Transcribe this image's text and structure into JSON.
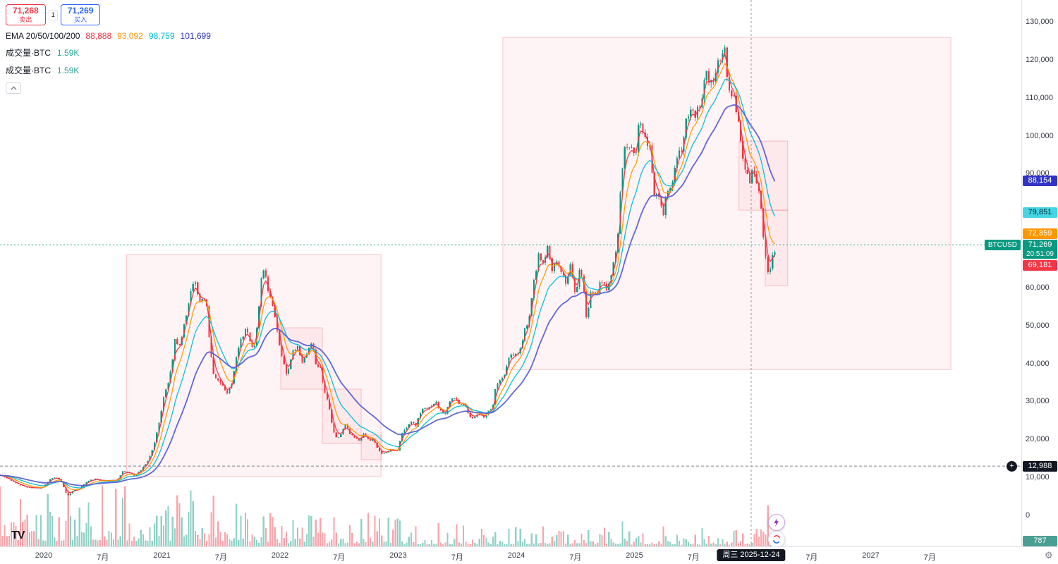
{
  "order_panel": {
    "sell_price": "71,268",
    "sell_label": "卖出",
    "spread": "1",
    "buy_price": "71,269",
    "buy_label": "买入"
  },
  "legend": {
    "ema_label": "EMA 20/50/100/200",
    "ema_values": [
      {
        "text": "88,888",
        "color": "#f23645"
      },
      {
        "text": "93,092",
        "color": "#ff9800"
      },
      {
        "text": "98,759",
        "color": "#00bcd4"
      },
      {
        "text": "101,699",
        "color": "#3134c5"
      }
    ],
    "volume_row1_label": "成交量·BTC",
    "volume_row1_value": "1.59K",
    "volume_row2_label": "成交量·BTC",
    "volume_row2_value": "1.59K",
    "volume_value_color": "#26a69a"
  },
  "chart_data": {
    "type": "candlestick",
    "symbol": "BTCUSD",
    "up_color": "#089981",
    "down_color": "#f23645",
    "y_axis": {
      "ticks": [
        130000,
        120000,
        110000,
        100000,
        90000,
        60000,
        50000,
        40000,
        30000,
        20000,
        10000,
        0
      ]
    },
    "x_axis": {
      "ticks": [
        {
          "t": 2020.0,
          "label": "2020"
        },
        {
          "t": 2020.5,
          "label": "7月"
        },
        {
          "t": 2021.0,
          "label": "2021"
        },
        {
          "t": 2021.5,
          "label": "7月"
        },
        {
          "t": 2022.0,
          "label": "2022"
        },
        {
          "t": 2022.5,
          "label": "7月"
        },
        {
          "t": 2023.0,
          "label": "2023"
        },
        {
          "t": 2023.5,
          "label": "7月"
        },
        {
          "t": 2024.0,
          "label": "2024"
        },
        {
          "t": 2024.5,
          "label": "7月"
        },
        {
          "t": 2025.0,
          "label": "2025"
        },
        {
          "t": 2025.5,
          "label": "7月"
        },
        {
          "t": 2026.5,
          "label": "7月"
        },
        {
          "t": 2027.0,
          "label": "2027"
        },
        {
          "t": 2027.5,
          "label": "7月"
        }
      ]
    },
    "price_path": [
      [
        2019.63,
        10800
      ],
      [
        2019.7,
        9800
      ],
      [
        2019.78,
        8300
      ],
      [
        2019.85,
        7500
      ],
      [
        2019.92,
        7200
      ],
      [
        2020,
        7200
      ],
      [
        2020.06,
        9400
      ],
      [
        2020.11,
        10200
      ],
      [
        2020.16,
        8900
      ],
      [
        2020.2,
        5600
      ],
      [
        2020.22,
        5200
      ],
      [
        2020.26,
        6700
      ],
      [
        2020.31,
        6900
      ],
      [
        2020.37,
        8800
      ],
      [
        2020.44,
        9600
      ],
      [
        2020.5,
        9200
      ],
      [
        2020.57,
        9150
      ],
      [
        2020.63,
        9300
      ],
      [
        2020.68,
        11600
      ],
      [
        2020.73,
        11300
      ],
      [
        2020.78,
        10400
      ],
      [
        2020.83,
        11800
      ],
      [
        2020.88,
        13900
      ],
      [
        2020.93,
        17200
      ],
      [
        2020.97,
        22000
      ],
      [
        2021,
        27000
      ],
      [
        2021.03,
        32000
      ],
      [
        2021.06,
        34500
      ],
      [
        2021.09,
        38500
      ],
      [
        2021.12,
        46500
      ],
      [
        2021.15,
        44000
      ],
      [
        2021.19,
        49000
      ],
      [
        2021.22,
        53000
      ],
      [
        2021.25,
        58000
      ],
      [
        2021.285,
        62800
      ],
      [
        2021.31,
        59000
      ],
      [
        2021.34,
        55800
      ],
      [
        2021.38,
        58000
      ],
      [
        2021.42,
        43000
      ],
      [
        2021.45,
        37000
      ],
      [
        2021.49,
        35800
      ],
      [
        2021.53,
        33800
      ],
      [
        2021.56,
        31800
      ],
      [
        2021.6,
        34500
      ],
      [
        2021.63,
        40000
      ],
      [
        2021.67,
        45800
      ],
      [
        2021.7,
        47800
      ],
      [
        2021.73,
        49000
      ],
      [
        2021.76,
        45000
      ],
      [
        2021.79,
        43800
      ],
      [
        2021.82,
        50500
      ],
      [
        2021.85,
        61800
      ],
      [
        2021.875,
        64800
      ],
      [
        2021.9,
        60800
      ],
      [
        2021.93,
        57200
      ],
      [
        2021.96,
        53800
      ],
      [
        2021.99,
        47200
      ],
      [
        2022.02,
        42800
      ],
      [
        2022.06,
        37200
      ],
      [
        2022.09,
        39200
      ],
      [
        2022.12,
        44000
      ],
      [
        2022.16,
        44200
      ],
      [
        2022.2,
        39800
      ],
      [
        2022.24,
        42800
      ],
      [
        2022.28,
        45600
      ],
      [
        2022.31,
        40200
      ],
      [
        2022.35,
        38800
      ],
      [
        2022.38,
        33200
      ],
      [
        2022.42,
        29800
      ],
      [
        2022.455,
        22800
      ],
      [
        2022.49,
        20400
      ],
      [
        2022.52,
        21200
      ],
      [
        2022.56,
        24000
      ],
      [
        2022.6,
        21600
      ],
      [
        2022.64,
        20200
      ],
      [
        2022.68,
        19900
      ],
      [
        2022.72,
        21600
      ],
      [
        2022.76,
        19600
      ],
      [
        2022.8,
        20300
      ],
      [
        2022.84,
        17100
      ],
      [
        2022.87,
        16300
      ],
      [
        2022.91,
        16600
      ],
      [
        2022.95,
        17300
      ],
      [
        2023,
        16700
      ],
      [
        2023.04,
        21200
      ],
      [
        2023.08,
        23300
      ],
      [
        2023.12,
        24600
      ],
      [
        2023.16,
        23600
      ],
      [
        2023.21,
        28300
      ],
      [
        2023.25,
        27900
      ],
      [
        2023.29,
        28600
      ],
      [
        2023.33,
        30000
      ],
      [
        2023.37,
        27300
      ],
      [
        2023.41,
        26900
      ],
      [
        2023.45,
        30300
      ],
      [
        2023.49,
        30600
      ],
      [
        2023.53,
        29400
      ],
      [
        2023.57,
        29300
      ],
      [
        2023.61,
        26100
      ],
      [
        2023.65,
        25900
      ],
      [
        2023.69,
        26600
      ],
      [
        2023.73,
        25900
      ],
      [
        2023.77,
        27300
      ],
      [
        2023.81,
        28400
      ],
      [
        2023.84,
        34600
      ],
      [
        2023.88,
        35600
      ],
      [
        2023.92,
        37900
      ],
      [
        2023.96,
        42900
      ],
      [
        2024,
        42400
      ],
      [
        2024.04,
        43100
      ],
      [
        2024.08,
        48600
      ],
      [
        2024.12,
        52100
      ],
      [
        2024.16,
        61600
      ],
      [
        2024.2,
        69100
      ],
      [
        2024.23,
        65600
      ],
      [
        2024.27,
        70900
      ],
      [
        2024.31,
        64600
      ],
      [
        2024.35,
        66600
      ],
      [
        2024.39,
        63900
      ],
      [
        2024.43,
        61600
      ],
      [
        2024.47,
        66600
      ],
      [
        2024.51,
        58100
      ],
      [
        2024.55,
        64900
      ],
      [
        2024.59,
        58100
      ],
      [
        2024.605,
        50800
      ],
      [
        2024.63,
        57600
      ],
      [
        2024.65,
        59600
      ],
      [
        2024.69,
        58300
      ],
      [
        2024.73,
        62600
      ],
      [
        2024.77,
        59000
      ],
      [
        2024.81,
        63100
      ],
      [
        2024.85,
        68900
      ],
      [
        2024.875,
        76100
      ],
      [
        2024.9,
        90600
      ],
      [
        2024.93,
        97100
      ],
      [
        2024.96,
        95600
      ],
      [
        2024.99,
        97600
      ],
      [
        2025.02,
        94600
      ],
      [
        2025.055,
        105600
      ],
      [
        2025.08,
        102100
      ],
      [
        2025.11,
        97600
      ],
      [
        2025.14,
        96900
      ],
      [
        2025.17,
        84600
      ],
      [
        2025.2,
        83600
      ],
      [
        2025.23,
        82600
      ],
      [
        2025.25,
        77800
      ],
      [
        2025.28,
        84100
      ],
      [
        2025.33,
        88100
      ],
      [
        2025.37,
        94600
      ],
      [
        2025.41,
        97100
      ],
      [
        2025.45,
        104100
      ],
      [
        2025.49,
        107600
      ],
      [
        2025.53,
        105600
      ],
      [
        2025.57,
        108600
      ],
      [
        2025.61,
        117600
      ],
      [
        2025.65,
        113600
      ],
      [
        2025.69,
        116600
      ],
      [
        2025.73,
        119600
      ],
      [
        2025.77,
        124100
      ],
      [
        2025.8,
        114600
      ],
      [
        2025.83,
        111100
      ],
      [
        2025.86,
        108600
      ],
      [
        2025.89,
        103100
      ],
      [
        2025.92,
        95600
      ],
      [
        2025.95,
        91100
      ],
      [
        2025.98,
        87600
      ],
      [
        2026.01,
        91600
      ],
      [
        2026.04,
        87100
      ],
      [
        2026.07,
        83600
      ],
      [
        2026.1,
        74100
      ],
      [
        2026.135,
        63600
      ],
      [
        2026.17,
        66600
      ],
      [
        2026.2,
        70600
      ]
    ],
    "emas": {
      "periods_days": [
        20,
        50,
        100,
        200
      ],
      "periods_weeks": [
        3,
        7,
        14,
        29
      ],
      "colors": [
        "#f23645",
        "#ff9800",
        "#00bcd4",
        "#5a5fd6"
      ],
      "current_values": [
        69181,
        72859,
        79851,
        88154
      ],
      "crosshair_values": [
        88888,
        93092,
        98759,
        101699
      ]
    },
    "badges": [
      {
        "price": 88154,
        "label": "88,154",
        "bg": "#3134c5",
        "fg": "#ffffff",
        "nudge": 0
      },
      {
        "price": 79851,
        "label": "79,851",
        "bg": "#45d5e4",
        "fg": "#0b2a30",
        "nudge": 0
      },
      {
        "price": 72859,
        "label": "72,859",
        "bg": "#ff9800",
        "fg": "#ffffff",
        "nudge": -7
      },
      {
        "price": 69181,
        "label": "69,181",
        "bg": "#f23645",
        "fg": "#ffffff",
        "nudge": 18
      }
    ],
    "current": {
      "symbol_tag": "BTCUSD",
      "price": 71269,
      "price_label": "71,269",
      "countdown": "20:51:09",
      "bg": "#089981"
    },
    "alert_line": {
      "price": 12988,
      "label": "12,988"
    },
    "volume_last": {
      "label": "787",
      "bg": "#4a9e94"
    },
    "crosshair": {
      "t": 2025.988,
      "date_label": "周三 2025-12-24"
    },
    "boxes": [
      {
        "t1": 2020.7,
        "p1": 10200,
        "t2": 2022.854,
        "p2": 68700
      },
      {
        "t1": 2023.886,
        "p1": 38400,
        "t2": 2027.678,
        "p2": 125900
      },
      {
        "t1": 2022.006,
        "p1": 33240,
        "t2": 2022.358,
        "p2": 49400
      },
      {
        "t1": 2022.358,
        "p1": 18940,
        "t2": 2022.687,
        "p2": 33240
      },
      {
        "t1": 2022.687,
        "p1": 14670,
        "t2": 2022.86,
        "p2": 21170
      },
      {
        "t1": 2025.885,
        "p1": 80400,
        "t2": 2026.297,
        "p2": 98600
      },
      {
        "t1": 2026.107,
        "p1": 60500,
        "t2": 2026.297,
        "p2": 80400
      }
    ],
    "volume_spikes": [
      [
        2019.81,
        50
      ],
      [
        2020.205,
        72
      ],
      [
        2021.04,
        58
      ],
      [
        2021.13,
        36
      ],
      [
        2021.42,
        34
      ],
      [
        2021.875,
        25
      ],
      [
        2022.455,
        38
      ],
      [
        2022.85,
        26
      ],
      [
        2023.0,
        24
      ],
      [
        2024.0,
        24
      ],
      [
        2024.9,
        20
      ],
      [
        2026.135,
        65
      ]
    ]
  },
  "footer": {
    "logo_text": "TV"
  },
  "icons": {
    "gear": "⚙",
    "plus": "+",
    "collapse": "chevron-up"
  }
}
